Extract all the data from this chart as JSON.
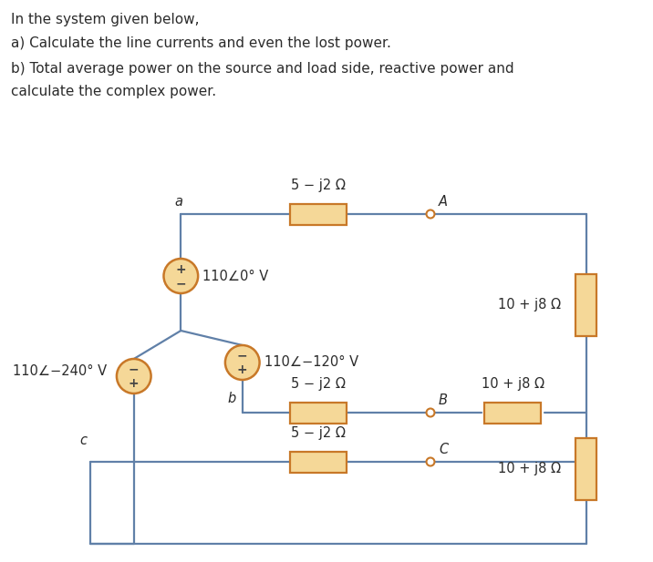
{
  "bg_color": "#ffffff",
  "text_color": "#2b2b2b",
  "line_color": "#6080a8",
  "resistor_fill": "#f5d898",
  "resistor_edge": "#c87828",
  "source_fill": "#f5d898",
  "source_edge": "#c87828",
  "node_color": "#c87828",
  "title_line1": "In the system given below,",
  "title_line2": "a) Calculate the line currents and even the lost power.",
  "title_line3": "b) Total average power on the source and load side, reactive power and",
  "title_line4": "calculate the complex power.",
  "src_a_label": "110•0° V",
  "src_b_label": "110•−120° V",
  "src_c_label": "110•−240° V",
  "res_line_label": "5 − j2 Ω",
  "res_load_label": "10 + j8 Ω",
  "lbl_A": "A",
  "lbl_B": "B",
  "lbl_C": "C",
  "lbl_a": "a",
  "lbl_b": "b",
  "lbl_c": "c"
}
